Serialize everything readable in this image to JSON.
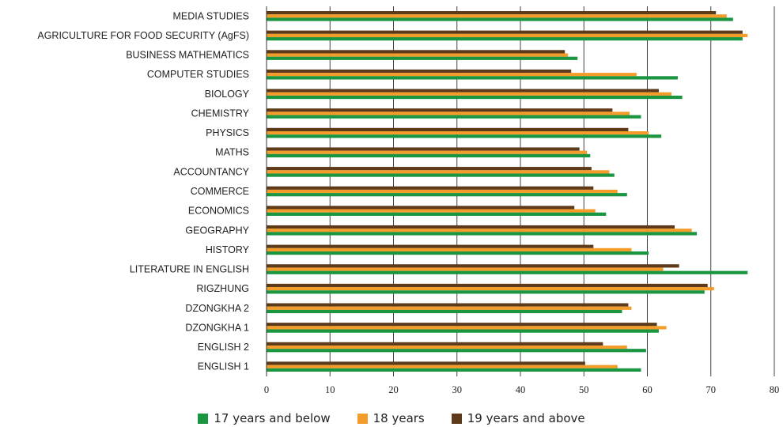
{
  "chart_data": {
    "type": "bar",
    "orientation": "horizontal",
    "categories": [
      "MEDIA STUDIES",
      "AGRICULTURE FOR FOOD SECURITY (AgFS)",
      "BUSINESS MATHEMATICS",
      "COMPUTER STUDIES",
      "BIOLOGY",
      "CHEMISTRY",
      "PHYSICS",
      "MATHS",
      "ACCOUNTANCY",
      "COMMERCE",
      "ECONOMICS",
      "GEOGRAPHY",
      "HISTORY",
      "LITERATURE IN ENGLISH",
      "RIGZHUNG",
      "DZONGKHA 2",
      "DZONGKHA 1",
      "ENGLISH 2",
      "ENGLISH 1"
    ],
    "series": [
      {
        "name": "17 years and below",
        "color": "#1a9641",
        "values": [
          73.5,
          75.0,
          49.0,
          64.8,
          65.5,
          59.0,
          62.2,
          51.0,
          54.8,
          56.8,
          53.5,
          67.8,
          60.2,
          75.8,
          69.0,
          56.0,
          61.8,
          59.8,
          59.0
        ]
      },
      {
        "name": "18 years",
        "color": "#f39c2a",
        "values": [
          72.5,
          75.8,
          47.5,
          58.3,
          63.8,
          57.2,
          60.2,
          50.5,
          54.0,
          55.3,
          51.8,
          67.0,
          57.5,
          62.5,
          70.5,
          57.5,
          63.0,
          56.8,
          55.3
        ]
      },
      {
        "name": "19 years and above",
        "color": "#5c3a1a",
        "values": [
          70.8,
          75.0,
          47.0,
          48.0,
          61.8,
          54.5,
          57.0,
          49.3,
          51.2,
          51.5,
          48.5,
          64.3,
          51.5,
          65.0,
          69.5,
          57.0,
          61.5,
          53.0,
          50.2
        ]
      }
    ],
    "xlim": [
      0,
      80
    ],
    "xticks": [
      "0",
      "10",
      "20",
      "30",
      "40",
      "50",
      "60",
      "70",
      "80"
    ],
    "grid": "vertical",
    "legend_position": "bottom"
  }
}
